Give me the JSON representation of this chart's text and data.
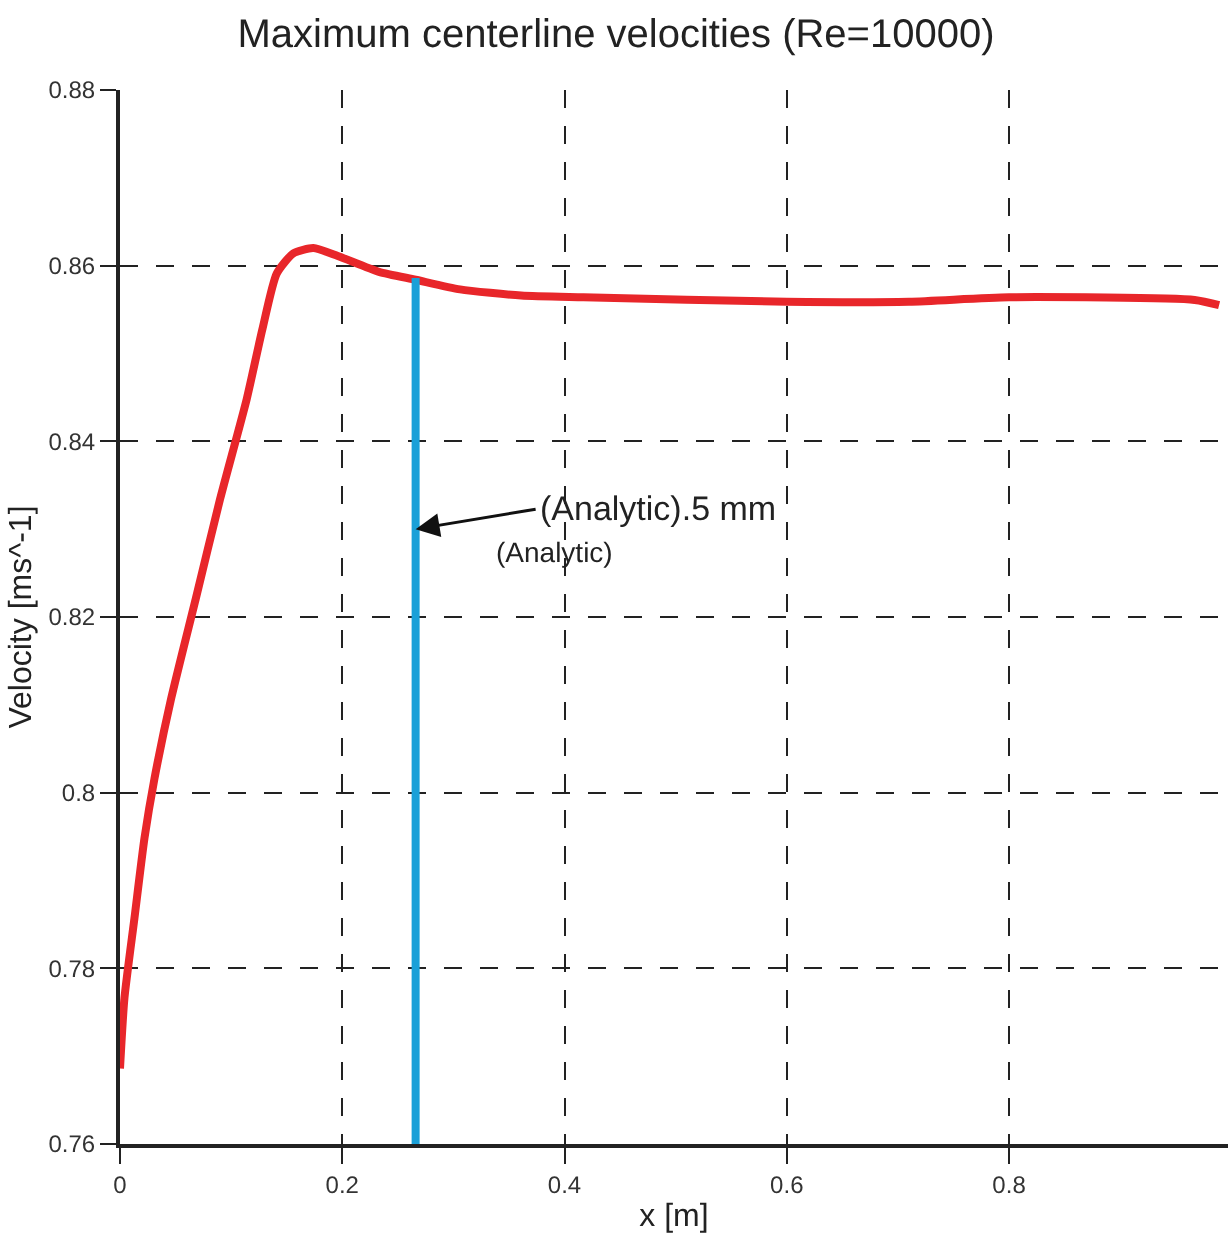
{
  "chart_data": {
    "type": "line",
    "title": "Maximum centerline velocities (Re=10000)",
    "xlabel": "x [m]",
    "ylabel": "Velocity [ms^-1]",
    "xlim": [
      0,
      0.997
    ],
    "xticks": [
      0,
      0.2,
      0.4,
      0.6,
      0.8
    ],
    "ylim": [
      0.76,
      0.88
    ],
    "yticks": [
      0.76,
      0.78,
      0.8,
      0.82,
      0.84,
      0.86,
      0.88
    ],
    "grid": true,
    "line_style": "solid",
    "marker": "none",
    "series": [
      {
        "color": "#e8262a",
        "x": [
          0,
          0.004,
          0.013,
          0.022,
          0.031,
          0.046,
          0.068,
          0.09,
          0.114,
          0.128,
          0.141,
          0.156,
          0.174,
          0.196,
          0.233,
          0.266,
          0.306,
          0.361,
          0.417,
          0.6,
          0.71,
          0.8,
          0.967,
          0.989
        ],
        "values": [
          0.7686,
          0.7766,
          0.7857,
          0.7948,
          0.8016,
          0.8107,
          0.822,
          0.8334,
          0.8448,
          0.8527,
          0.8591,
          0.8614,
          0.862,
          0.8611,
          0.8593,
          0.8584,
          0.8573,
          0.8566,
          0.8564,
          0.8559,
          0.8559,
          0.8564,
          0.8561,
          0.8555
        ]
      },
      {
        "color": "#1aa0d8",
        "x": [
          0.266,
          0.266
        ],
        "values": [
          0.76,
          0.8586
        ]
      }
    ],
    "annotations": [
      {
        "text": "(Analytic).5 mm",
        "x": 0.266,
        "y": 0.83
      },
      "(Analytic)"
    ]
  }
}
